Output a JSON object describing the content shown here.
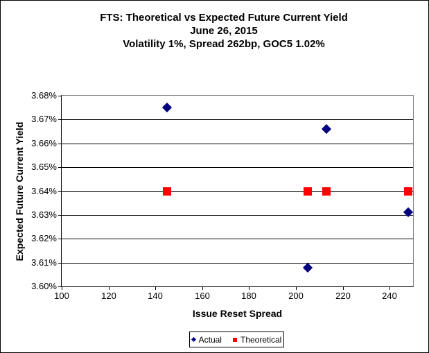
{
  "chart_data": {
    "type": "scatter",
    "title": "FTS: Theoretical vs Expected Future Current Yield",
    "subtitle1": "June 26, 2015",
    "subtitle2": "Volatility 1%, Spread 262bp, GOC5 1.02%",
    "xlabel": "Issue Reset Spread",
    "ylabel": "Expected Future Current Yield",
    "xlim": [
      100,
      250
    ],
    "ylim": [
      3.6,
      3.68
    ],
    "x_ticks": [
      100,
      120,
      140,
      160,
      180,
      200,
      220,
      240
    ],
    "y_ticks": [
      3.6,
      3.61,
      3.62,
      3.63,
      3.64,
      3.65,
      3.66,
      3.67,
      3.68
    ],
    "y_tick_suffix": "%",
    "grid": "horizontal",
    "legend_position": "bottom-center",
    "series": [
      {
        "name": "Actual",
        "marker": "diamond",
        "color": "#000080",
        "points": [
          {
            "x": 145,
            "y": 3.675
          },
          {
            "x": 205,
            "y": 3.608
          },
          {
            "x": 213,
            "y": 3.666
          },
          {
            "x": 248,
            "y": 3.631
          }
        ]
      },
      {
        "name": "Theoretical",
        "marker": "square",
        "color": "#ff0000",
        "points": [
          {
            "x": 145,
            "y": 3.64
          },
          {
            "x": 205,
            "y": 3.64
          },
          {
            "x": 213,
            "y": 3.64
          },
          {
            "x": 248,
            "y": 3.64
          }
        ]
      }
    ],
    "colors": {
      "actual": "#000080",
      "theoretical": "#ff0000",
      "gridline": "#000000",
      "plot_border": "#808080",
      "axis": "#000000",
      "background": "#ffffff"
    }
  }
}
